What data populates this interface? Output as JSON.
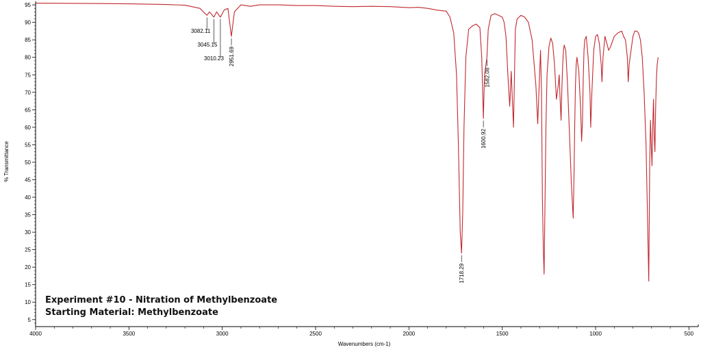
{
  "chart_data": {
    "type": "line",
    "xlabel": "Wavenumbers (cm-1)",
    "ylabel": "% Transmittance",
    "xlim": [
      4000,
      450
    ],
    "ylim": [
      3,
      96
    ],
    "x_ticks": [
      "4000",
      "3500",
      "3000",
      "2500",
      "2000",
      "1500",
      "1000",
      "500"
    ],
    "y_ticks": [
      "5",
      "10",
      "15",
      "20",
      "25",
      "30",
      "35",
      "40",
      "45",
      "50",
      "55",
      "60",
      "65",
      "70",
      "75",
      "80",
      "85",
      "90",
      "95"
    ],
    "grid": false,
    "series": [
      {
        "color": "#c0272d",
        "x": [
          4000,
          3700,
          3500,
          3300,
          3200,
          3120,
          3082,
          3068,
          3045,
          3030,
          3010,
          2990,
          2970,
          2951,
          2935,
          2900,
          2850,
          2800,
          2700,
          2600,
          2500,
          2400,
          2300,
          2200,
          2100,
          2000,
          1950,
          1900,
          1850,
          1800,
          1780,
          1760,
          1745,
          1735,
          1725,
          1718,
          1712,
          1705,
          1695,
          1680,
          1660,
          1640,
          1620,
          1610,
          1601,
          1595,
          1582,
          1575,
          1560,
          1540,
          1520,
          1500,
          1490,
          1480,
          1470,
          1460,
          1452,
          1446,
          1440,
          1436,
          1430,
          1420,
          1400,
          1380,
          1360,
          1340,
          1320,
          1310,
          1300,
          1295,
          1290,
          1285,
          1280,
          1276,
          1272,
          1266,
          1260,
          1250,
          1240,
          1230,
          1220,
          1210,
          1200,
          1195,
          1190,
          1185,
          1180,
          1176,
          1172,
          1168,
          1160,
          1150,
          1140,
          1130,
          1120,
          1116,
          1112,
          1108,
          1104,
          1100,
          1090,
          1080,
          1075,
          1070,
          1066,
          1062,
          1058,
          1050,
          1040,
          1030,
          1026,
          1020,
          1010,
          1000,
          990,
          980,
          970,
          966,
          960,
          950,
          940,
          930,
          920,
          900,
          880,
          860,
          850,
          840,
          830,
          825,
          820,
          810,
          800,
          790,
          780,
          770,
          760,
          750,
          740,
          730,
          722,
          715,
          710,
          706,
          702,
          698,
          694,
          690,
          686,
          682,
          678,
          674,
          670,
          665
        ],
        "y": [
          95.5,
          95.4,
          95.3,
          95.1,
          94.9,
          94.0,
          92.0,
          93.0,
          91.5,
          93.0,
          91.5,
          93.5,
          94.0,
          86.0,
          93.0,
          95.0,
          94.6,
          95.0,
          95.0,
          94.8,
          94.8,
          94.6,
          94.5,
          94.6,
          94.5,
          94.2,
          94.3,
          94.0,
          93.5,
          93.2,
          91.5,
          87.0,
          75.0,
          55.0,
          30.0,
          24.0,
          35.0,
          60.0,
          80.0,
          88.0,
          89.0,
          89.5,
          88.5,
          80.0,
          62.5,
          75.0,
          80.0,
          88.0,
          92.0,
          92.5,
          92.0,
          91.5,
          90.0,
          86.0,
          75.0,
          66.0,
          76.0,
          68.0,
          60.0,
          70.0,
          88.0,
          91.0,
          92.0,
          91.5,
          90.0,
          85.0,
          72.0,
          61.0,
          75.0,
          82.0,
          70.0,
          40.0,
          25.0,
          18.0,
          35.0,
          60.0,
          75.0,
          83.0,
          85.5,
          84.0,
          78.0,
          68.0,
          72.0,
          75.0,
          68.0,
          62.0,
          72.0,
          78.0,
          82.0,
          83.5,
          82.0,
          72.0,
          58.0,
          44.0,
          34.0,
          45.0,
          60.0,
          72.0,
          78.0,
          80.0,
          76.0,
          65.0,
          56.0,
          62.0,
          74.0,
          82.0,
          85.0,
          86.0,
          80.0,
          70.0,
          60.0,
          70.0,
          82.0,
          86.0,
          86.5,
          84.0,
          78.0,
          73.0,
          80.0,
          86.0,
          84.0,
          82.0,
          83.0,
          86.0,
          87.0,
          87.5,
          86.0,
          85.0,
          80.0,
          73.0,
          78.0,
          82.0,
          86.0,
          87.5,
          87.5,
          87.0,
          85.0,
          80.0,
          70.0,
          55.0,
          35.0,
          16.0,
          50.0,
          62.0,
          55.0,
          49.0,
          60.0,
          68.0,
          58.0,
          53.0,
          66.0,
          74.0,
          78.0,
          80.0
        ]
      }
    ],
    "peak_labels": [
      {
        "text": "3082.11",
        "x": 3082,
        "orient": "horizontal"
      },
      {
        "text": "3045.15",
        "x": 3045,
        "orient": "horizontal"
      },
      {
        "text": "3010.23",
        "x": 3010,
        "orient": "horizontal"
      },
      {
        "text": "2951.69",
        "x": 2951,
        "orient": "vertical"
      },
      {
        "text": "1718.29",
        "x": 1718,
        "orient": "vertical"
      },
      {
        "text": "1600.92",
        "x": 1601,
        "orient": "vertical"
      },
      {
        "text": "1582.08",
        "x": 1582,
        "orient": "vertical"
      }
    ],
    "annotations": [
      "Experiment #10 - Nitration of Methylbenzoate",
      "Starting Material: Methylbenzoate"
    ]
  }
}
